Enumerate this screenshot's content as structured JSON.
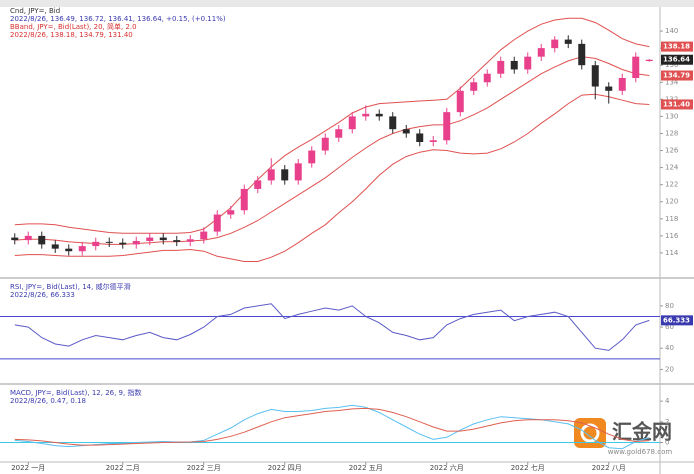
{
  "chart_data": [
    {
      "type": "candlestick",
      "legend": [
        {
          "text": "Cnd, JPY=, Bid",
          "color": "#333333"
        },
        {
          "text": "2022/8/26, 136.49, 136.72, 136.41, 136.64, +0.15, (+0.11%)",
          "color": "#3a3ab0"
        },
        {
          "text": "BBand, JPY=, Bid(Last), 20, 简单, 2.0",
          "color": "#d83030"
        },
        {
          "text": "2022/8/26, 138.18, 134.79, 131.40",
          "color": "#d83030"
        }
      ],
      "categories": [
        null,
        "2022 一月",
        null,
        null,
        null,
        null,
        null,
        null,
        "2022 二月",
        null,
        null,
        null,
        null,
        null,
        "2022 三月",
        null,
        null,
        null,
        null,
        null,
        "2022 四月",
        null,
        null,
        null,
        null,
        null,
        "2022 五月",
        null,
        null,
        null,
        null,
        null,
        "2022 六月",
        null,
        null,
        null,
        null,
        null,
        "2022 七月",
        null,
        null,
        null,
        null,
        null,
        "2022 八月",
        null,
        null,
        null
      ],
      "open": [
        115.8,
        115.5,
        116,
        115,
        114.5,
        114.2,
        114.8,
        115.3,
        115.2,
        115.0,
        115.4,
        115.8,
        115.5,
        115.3,
        115.6,
        116.5,
        118.5,
        119,
        121.5,
        122.5,
        123.8,
        122.5,
        124.5,
        126,
        127.5,
        128.5,
        130.0,
        130.3,
        130.0,
        128.5,
        128.0,
        127.0,
        127.2,
        130.5,
        133,
        134,
        135,
        136.5,
        135.5,
        137,
        138,
        139,
        138.5,
        136,
        133.5,
        133,
        134.5,
        136.49
      ],
      "high": [
        116.3,
        116.5,
        116.5,
        115.5,
        115.0,
        115.3,
        115.8,
        115.8,
        115.7,
        115.9,
        116.3,
        116.3,
        116.0,
        116.1,
        117.0,
        119.0,
        119.5,
        122.0,
        123.0,
        125.1,
        124.3,
        125.0,
        126.5,
        128.0,
        129.0,
        130.5,
        131.3,
        130.8,
        130.5,
        129.0,
        128.5,
        127.7,
        131.0,
        133.5,
        134.5,
        135.5,
        137.0,
        137.0,
        137.5,
        138.5,
        139.4,
        139.5,
        139.0,
        136.5,
        134.0,
        135.0,
        137.5,
        136.72
      ],
      "low": [
        115.0,
        115.0,
        114.5,
        114.0,
        113.7,
        113.7,
        114.3,
        114.7,
        114.5,
        114.5,
        114.9,
        115.0,
        114.8,
        114.8,
        115.1,
        116.0,
        118.0,
        118.5,
        121.0,
        122.0,
        122.0,
        122.0,
        124.0,
        125.5,
        127.0,
        128.0,
        129.5,
        129.5,
        128.0,
        127.5,
        126.5,
        126.5,
        126.7,
        130.0,
        132.5,
        133.5,
        134.5,
        135.0,
        135.0,
        136.5,
        137.5,
        138.0,
        135.5,
        132.0,
        131.5,
        132.5,
        134.0,
        136.41
      ],
      "close": [
        115.5,
        116,
        115,
        114.5,
        114.2,
        114.8,
        115.3,
        115.2,
        115.0,
        115.4,
        115.8,
        115.5,
        115.3,
        115.6,
        116.5,
        118.5,
        119,
        121.5,
        122.5,
        123.8,
        122.5,
        124.5,
        126,
        127.5,
        128.5,
        130.0,
        130.3,
        130.0,
        128.5,
        128.0,
        127.0,
        127.2,
        130.5,
        133,
        134,
        135,
        136.5,
        135.5,
        137,
        138,
        139,
        138.5,
        136,
        133.5,
        133,
        134.5,
        137,
        136.64
      ],
      "up_color": "#e8408a",
      "down_color": "#2a2a2a",
      "series": [
        {
          "color": "#e05050",
          "values": [
            117.3,
            117.4,
            117.4,
            117.3,
            117.0,
            116.8,
            116.6,
            116.4,
            116.3,
            116.3,
            116.3,
            116.3,
            116.3,
            116.4,
            116.8,
            118.0,
            119.3,
            121.0,
            122.6,
            124.1,
            125.4,
            126.4,
            127.3,
            128.3,
            129.3,
            130.4,
            131.1,
            131.5,
            131.6,
            131.7,
            131.8,
            131.9,
            132.0,
            133.3,
            134.8,
            136.3,
            137.8,
            139.0,
            140.0,
            140.8,
            141.3,
            141.5,
            141.5,
            141.0,
            140.1,
            139.1,
            138.5,
            138.18
          ]
        },
        {
          "color": "#e05050",
          "values": [
            115.5,
            115.6,
            115.6,
            115.5,
            115.3,
            115.2,
            115.1,
            115.0,
            115.0,
            115.1,
            115.2,
            115.3,
            115.3,
            115.4,
            115.5,
            115.8,
            116.3,
            117.0,
            117.8,
            118.8,
            119.8,
            120.8,
            121.8,
            122.8,
            124.0,
            125.2,
            126.3,
            127.3,
            128.0,
            128.5,
            128.8,
            129.0,
            129.0,
            129.5,
            130.2,
            131.0,
            132.0,
            133.0,
            134.0,
            135.0,
            135.8,
            136.5,
            137.0,
            136.8,
            136.2,
            135.5,
            135.0,
            134.79
          ]
        },
        {
          "color": "#e05050",
          "values": [
            113.7,
            113.8,
            113.8,
            113.7,
            113.6,
            113.6,
            113.6,
            113.6,
            113.7,
            113.9,
            114.1,
            114.3,
            114.3,
            114.4,
            114.2,
            113.6,
            113.3,
            113.0,
            113.0,
            113.5,
            114.2,
            115.2,
            116.3,
            117.3,
            118.7,
            120.0,
            121.5,
            123.1,
            124.4,
            125.3,
            125.8,
            126.1,
            126.0,
            125.7,
            125.6,
            125.7,
            126.2,
            127.0,
            128.0,
            129.2,
            130.3,
            131.5,
            132.5,
            132.6,
            132.3,
            131.9,
            131.5,
            131.4
          ],
          "value_labels": [
            null,
            null,
            null,
            null,
            null,
            null,
            null,
            null,
            null,
            null,
            null,
            null,
            null,
            null,
            null,
            null,
            null,
            null,
            null,
            null,
            null,
            null,
            null,
            null,
            null,
            null,
            null,
            null,
            null,
            null,
            null,
            null,
            null,
            null,
            null,
            null,
            null,
            null,
            null,
            null,
            null,
            null,
            null,
            null,
            null,
            null,
            null,
            "131.40"
          ]
        }
      ],
      "ylim": [
        112,
        142
      ],
      "yticks": [
        114,
        116,
        118,
        120,
        122,
        124,
        126,
        128,
        130,
        132,
        134,
        136,
        138,
        140
      ]
    },
    {
      "type": "line",
      "legend": [
        {
          "text": "RSI, JPY=, Bid(Last), 14, 威尔德平滑",
          "color": "#3a3ab0"
        },
        {
          "text": "2022/8/26, 66.333",
          "color": "#3a3ab0"
        }
      ],
      "series": [
        {
          "color": "#5a5ac8",
          "values": [
            62,
            60,
            50,
            44,
            42,
            48,
            52,
            50,
            48,
            52,
            55,
            50,
            48,
            53,
            60,
            70,
            72,
            78,
            80,
            82,
            68,
            72,
            75,
            78,
            76,
            80,
            70,
            64,
            55,
            52,
            48,
            50,
            62,
            68,
            72,
            74,
            76,
            66,
            70,
            72,
            74,
            70,
            55,
            40,
            38,
            48,
            62,
            66.333
          ]
        }
      ],
      "levels": [
        70,
        30
      ],
      "level_color": "#4848d0",
      "ylim": [
        10,
        95
      ],
      "yticks": [
        20,
        40,
        60,
        80
      ]
    },
    {
      "type": "line",
      "legend": [
        {
          "text": "MACD, JPY=, Bid(Last), 12, 26, 9, 指数",
          "color": "#3a3ab0"
        },
        {
          "text": "2022/8/26, 0.47, 0.18",
          "color": "#3a3ab0"
        }
      ],
      "series": [
        {
          "color": "#5ac0f0",
          "values": [
            0.2,
            0.1,
            -0.1,
            -0.3,
            -0.4,
            -0.3,
            -0.2,
            -0.1,
            -0.1,
            0,
            0.05,
            0.1,
            0.05,
            0.05,
            0.2,
            0.8,
            1.4,
            2.2,
            2.8,
            3.2,
            3.0,
            3.0,
            3.1,
            3.3,
            3.4,
            3.6,
            3.4,
            2.9,
            2.2,
            1.5,
            0.8,
            0.3,
            0.5,
            1.2,
            1.8,
            2.2,
            2.5,
            2.4,
            2.3,
            2.2,
            2.0,
            1.8,
            1.2,
            0.2,
            -0.5,
            -0.6,
            0.1,
            0.47
          ]
        },
        {
          "color": "#e06050",
          "values": [
            0.3,
            0.25,
            0.15,
            0,
            -0.15,
            -0.25,
            -0.25,
            -0.2,
            -0.15,
            -0.1,
            -0.05,
            0,
            0.03,
            0.05,
            0.1,
            0.3,
            0.6,
            1.0,
            1.5,
            2.0,
            2.4,
            2.6,
            2.8,
            3.0,
            3.1,
            3.25,
            3.3,
            3.2,
            2.9,
            2.5,
            2.0,
            1.5,
            1.1,
            1.1,
            1.3,
            1.6,
            1.9,
            2.1,
            2.2,
            2.2,
            2.2,
            2.1,
            1.9,
            1.4,
            0.8,
            0.3,
            0.1,
            0.18
          ]
        }
      ],
      "levels": [
        0
      ],
      "level_color": "#40c8e8",
      "ylim": [
        -1.5,
        4.5
      ],
      "yticks": [
        0,
        2,
        4
      ]
    }
  ],
  "watermark": {
    "brand": "汇金网",
    "url": "www.gold678.com"
  }
}
